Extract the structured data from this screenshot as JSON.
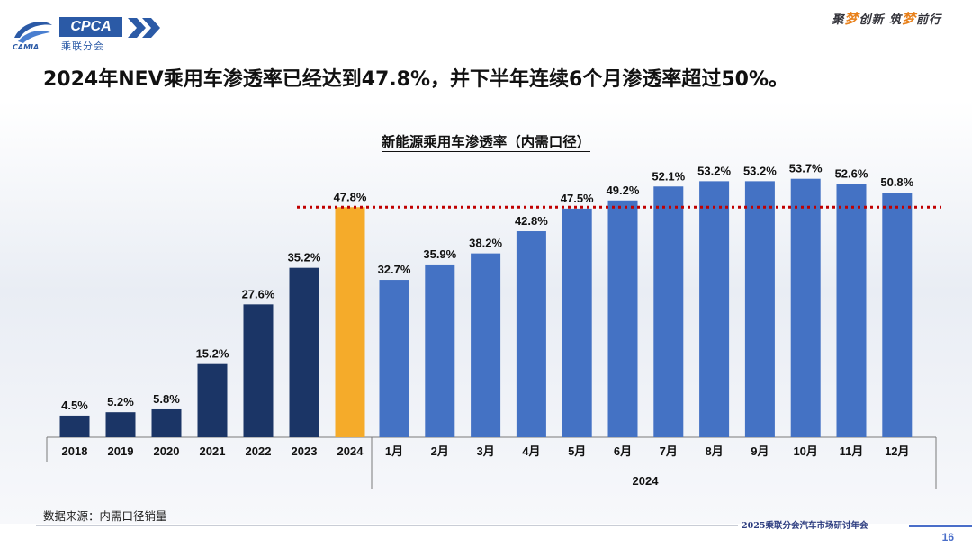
{
  "header": {
    "logo_text": "CPCA",
    "logo_sub": "乘联分会",
    "logo_brand": "CAMIA",
    "slogan_parts": [
      "聚",
      "梦",
      "创新 筑",
      "梦",
      "前行"
    ]
  },
  "headline": "2024年NEV乘用车渗透率已经达到47.8%，并下半年连续6个月渗透率超过50%。",
  "chart_data": {
    "type": "bar",
    "title": "新能源乘用车渗透率（内需口径）",
    "unit": "%",
    "ylim": [
      0,
      60
    ],
    "reference_line": 47.8,
    "groups": [
      {
        "name": "annual",
        "categories": [
          "2018",
          "2019",
          "2020",
          "2021",
          "2022",
          "2023",
          "2024"
        ],
        "values": [
          4.5,
          5.2,
          5.8,
          15.2,
          27.6,
          35.2,
          47.8
        ],
        "colors": [
          "#1b3566",
          "#1b3566",
          "#1b3566",
          "#1b3566",
          "#1b3566",
          "#1b3566",
          "#f5ab2a"
        ]
      },
      {
        "name": "monthly",
        "group_label": "2024",
        "categories": [
          "1月",
          "2月",
          "3月",
          "4月",
          "5月",
          "6月",
          "7月",
          "8月",
          "9月",
          "10月",
          "11月",
          "12月"
        ],
        "values": [
          32.7,
          35.9,
          38.2,
          42.8,
          47.5,
          49.2,
          52.1,
          53.2,
          53.2,
          53.7,
          52.6,
          50.8
        ],
        "color": "#4472c4"
      }
    ],
    "reference_line_color": "#c00000"
  },
  "source": "数据来源：内需口径销量",
  "footer": {
    "conference": "2025乘联分会汽车市场研讨年会",
    "page": "16"
  }
}
